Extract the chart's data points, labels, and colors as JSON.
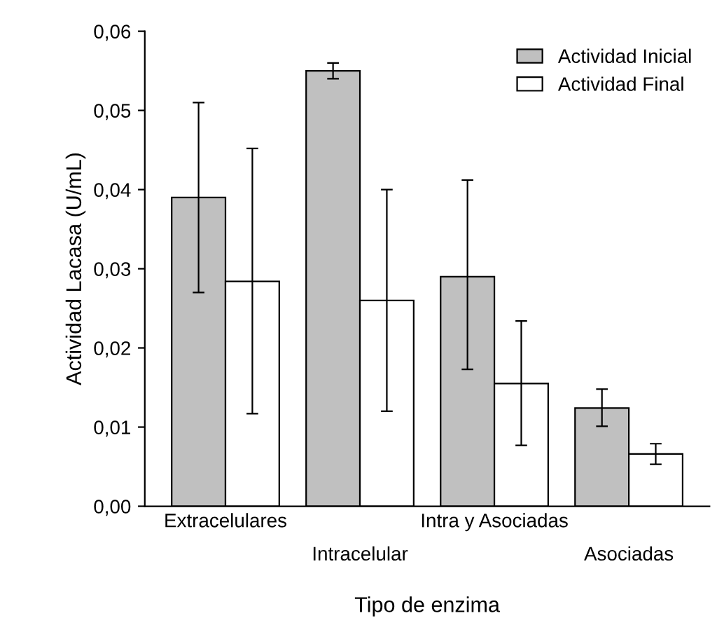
{
  "chart_data": {
    "type": "bar",
    "xlabel": "Tipo de enzima",
    "ylabel": "Actividad Lacasa (U/mL)",
    "categories": [
      "Extracelulares",
      "Intracelular",
      "Intra y Asociadas",
      "Asociadas"
    ],
    "series": [
      {
        "name": "Actividad Inicial",
        "color": "#c0c0c0",
        "values": [
          0.039,
          0.055,
          0.029,
          0.0124
        ],
        "errors": [
          [
            0.027,
            0.051
          ],
          [
            0.054,
            0.056
          ],
          [
            0.0173,
            0.0412
          ],
          [
            0.0101,
            0.0148
          ]
        ]
      },
      {
        "name": "Actividad Final",
        "color": "#ffffff",
        "values": [
          0.0284,
          0.026,
          0.0155,
          0.0066
        ],
        "errors": [
          [
            0.0117,
            0.0452
          ],
          [
            0.012,
            0.04
          ],
          [
            0.0077,
            0.0234
          ],
          [
            0.0053,
            0.0079
          ]
        ]
      }
    ],
    "ylim": [
      0,
      0.06
    ],
    "yticks": [
      {
        "value": 0,
        "label": "0,00"
      },
      {
        "value": 0.01,
        "label": "0,01"
      },
      {
        "value": 0.02,
        "label": "0,02"
      },
      {
        "value": 0.03,
        "label": "0,03"
      },
      {
        "value": 0.04,
        "label": "0,04"
      },
      {
        "value": 0.05,
        "label": "0,05"
      },
      {
        "value": 0.06,
        "label": "0,06"
      }
    ],
    "legend": "top right",
    "grid": false
  }
}
